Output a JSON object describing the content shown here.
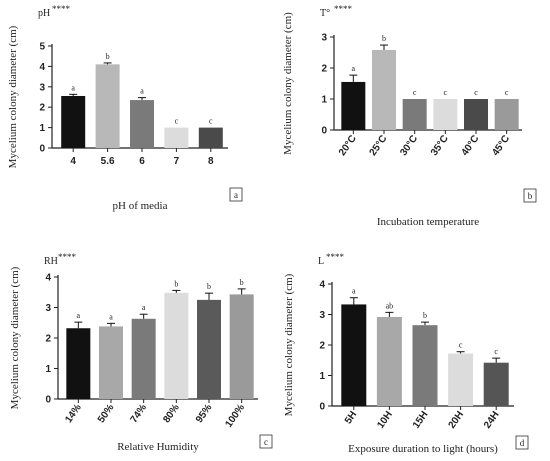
{
  "chart_data": [
    {
      "type": "bar",
      "title": "pH",
      "significance": "****",
      "panel_label": "a",
      "xlabel": "pH of media",
      "ylabel": "Mycelium colony diameter (cm)",
      "ylim": [
        0,
        5
      ],
      "yticks": [
        0,
        1,
        2,
        3,
        4,
        5
      ],
      "categories": [
        "4",
        "5.6",
        "6",
        "7",
        "8"
      ],
      "values": [
        2.55,
        4.1,
        2.35,
        1.0,
        1.0
      ],
      "errors": [
        0.08,
        0.07,
        0.12,
        0.0,
        0.0
      ],
      "letters": [
        "a",
        "b",
        "a",
        "c",
        "c"
      ],
      "colors": [
        "#111111",
        "#b8b8b8",
        "#7a7a7a",
        "#dcdcdc",
        "#4a4a4a"
      ],
      "rotate_ticks": false
    },
    {
      "type": "bar",
      "title": "T°",
      "significance": "****",
      "panel_label": "b",
      "xlabel": "Incubation temperature",
      "ylabel": "Mycelium colony diameter (cm)",
      "ylim": [
        0,
        3
      ],
      "yticks": [
        0,
        1,
        2,
        3
      ],
      "categories": [
        "20°C",
        "25°C",
        "30°C",
        "35°C",
        "40°C",
        "45°C"
      ],
      "values": [
        1.55,
        2.58,
        1.0,
        1.0,
        1.0,
        1.0
      ],
      "errors": [
        0.22,
        0.16,
        0.0,
        0.0,
        0.0,
        0.0
      ],
      "letters": [
        "a",
        "b",
        "c",
        "c",
        "c",
        "c"
      ],
      "colors": [
        "#111111",
        "#b8b8b8",
        "#7a7a7a",
        "#dcdcdc",
        "#4a4a4a",
        "#9a9a9a"
      ],
      "rotate_ticks": true
    },
    {
      "type": "bar",
      "title": "RH",
      "significance": "****",
      "panel_label": "c",
      "xlabel": "Relative Humidity",
      "ylabel": "Mycelium colony diameter (cm)",
      "ylim": [
        0,
        4
      ],
      "yticks": [
        0,
        1,
        2,
        3,
        4
      ],
      "categories": [
        "14%",
        "50%",
        "74%",
        "80%",
        "95%",
        "100%"
      ],
      "values": [
        2.32,
        2.38,
        2.63,
        3.48,
        3.25,
        3.43
      ],
      "errors": [
        0.2,
        0.1,
        0.15,
        0.08,
        0.22,
        0.18
      ],
      "letters": [
        "a",
        "a",
        "a",
        "b",
        "b",
        "b"
      ],
      "colors": [
        "#111111",
        "#a8a8a8",
        "#7a7a7a",
        "#dcdcdc",
        "#5a5a5a",
        "#9a9a9a"
      ],
      "rotate_ticks": true
    },
    {
      "type": "bar",
      "title": "L",
      "significance": "****",
      "panel_label": "d",
      "xlabel": "Exposure duration to light (hours)",
      "ylabel": "Mycelium colony diameter (cm)",
      "ylim": [
        0,
        4
      ],
      "yticks": [
        0,
        1,
        2,
        3,
        4
      ],
      "categories": [
        "5H",
        "10H",
        "15H",
        "20H",
        "24H"
      ],
      "values": [
        3.33,
        2.92,
        2.65,
        1.72,
        1.42
      ],
      "errors": [
        0.22,
        0.15,
        0.1,
        0.06,
        0.15
      ],
      "letters": [
        "a",
        "ab",
        "b",
        "c",
        "c"
      ],
      "colors": [
        "#111111",
        "#a8a8a8",
        "#7a7a7a",
        "#dcdcdc",
        "#555555"
      ],
      "rotate_ticks": true
    }
  ]
}
